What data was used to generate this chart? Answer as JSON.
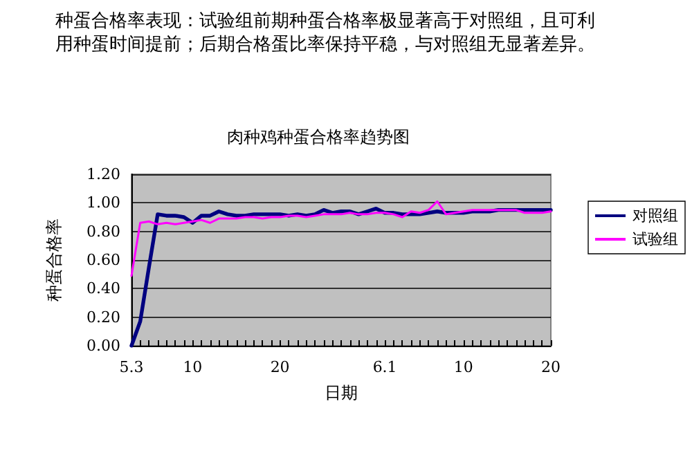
{
  "chart_data": {
    "type": "line",
    "title": "肉种鸡种蛋合格率趋势图",
    "xlabel": "日期",
    "ylabel": "种蛋合格率",
    "annotations": [
      "种蛋合格率表现：试验组前期种蛋合格率极显著高于对照组，且可利用种蛋时间提前；后期合格蛋比率保持平稳，与对照组无显著差异。"
    ],
    "categories": [
      "5.3",
      null,
      null,
      null,
      null,
      null,
      null,
      "10",
      null,
      null,
      null,
      null,
      null,
      null,
      null,
      null,
      null,
      "20",
      null,
      null,
      null,
      null,
      null,
      null,
      null,
      null,
      null,
      null,
      null,
      "6.1",
      null,
      null,
      null,
      null,
      null,
      null,
      null,
      null,
      "10",
      null,
      null,
      null,
      null,
      null,
      null,
      null,
      null,
      null,
      "20"
    ],
    "series": [
      {
        "name": "对照组",
        "color": "#000080",
        "values": [
          0,
          0.17,
          0.55,
          0.92,
          0.91,
          0.91,
          0.9,
          0.86,
          0.91,
          0.91,
          0.94,
          0.92,
          0.91,
          0.91,
          0.92,
          0.92,
          0.92,
          0.92,
          0.91,
          0.92,
          0.91,
          0.92,
          0.95,
          0.93,
          0.94,
          0.94,
          0.92,
          0.94,
          0.96,
          0.93,
          0.93,
          0.92,
          0.92,
          0.92,
          0.93,
          0.94,
          0.93,
          0.93,
          0.93,
          0.94,
          0.94,
          0.94,
          0.95,
          0.95,
          0.95,
          0.95,
          0.95,
          0.95,
          0.95
        ]
      },
      {
        "name": "试验组",
        "color": "#ff00ff",
        "values": [
          0.49,
          0.86,
          0.87,
          0.85,
          0.86,
          0.85,
          0.86,
          0.87,
          0.88,
          0.86,
          0.89,
          0.89,
          0.89,
          0.9,
          0.9,
          0.89,
          0.9,
          0.9,
          0.91,
          0.91,
          0.9,
          0.91,
          0.92,
          0.92,
          0.92,
          0.93,
          0.92,
          0.92,
          0.93,
          0.93,
          0.92,
          0.9,
          0.94,
          0.93,
          0.95,
          1.01,
          0.92,
          0.93,
          0.94,
          0.95,
          0.95,
          0.95,
          0.95,
          0.95,
          0.95,
          0.93,
          0.93,
          0.93,
          0.94
        ]
      }
    ],
    "ylim": [
      0,
      1.2
    ],
    "yticks": [
      {
        "value": 0,
        "label": "0.00"
      },
      {
        "value": 0.2,
        "label": "0.20"
      },
      {
        "value": 0.4,
        "label": "0.40"
      },
      {
        "value": 0.6,
        "label": "0.60"
      },
      {
        "value": 0.8,
        "label": "0.80"
      },
      {
        "value": 1.0,
        "label": "1.00"
      },
      {
        "value": 1.2,
        "label": "1.20"
      }
    ],
    "grid": "y",
    "legend": "right",
    "marker": "none",
    "line_style": "solid"
  }
}
